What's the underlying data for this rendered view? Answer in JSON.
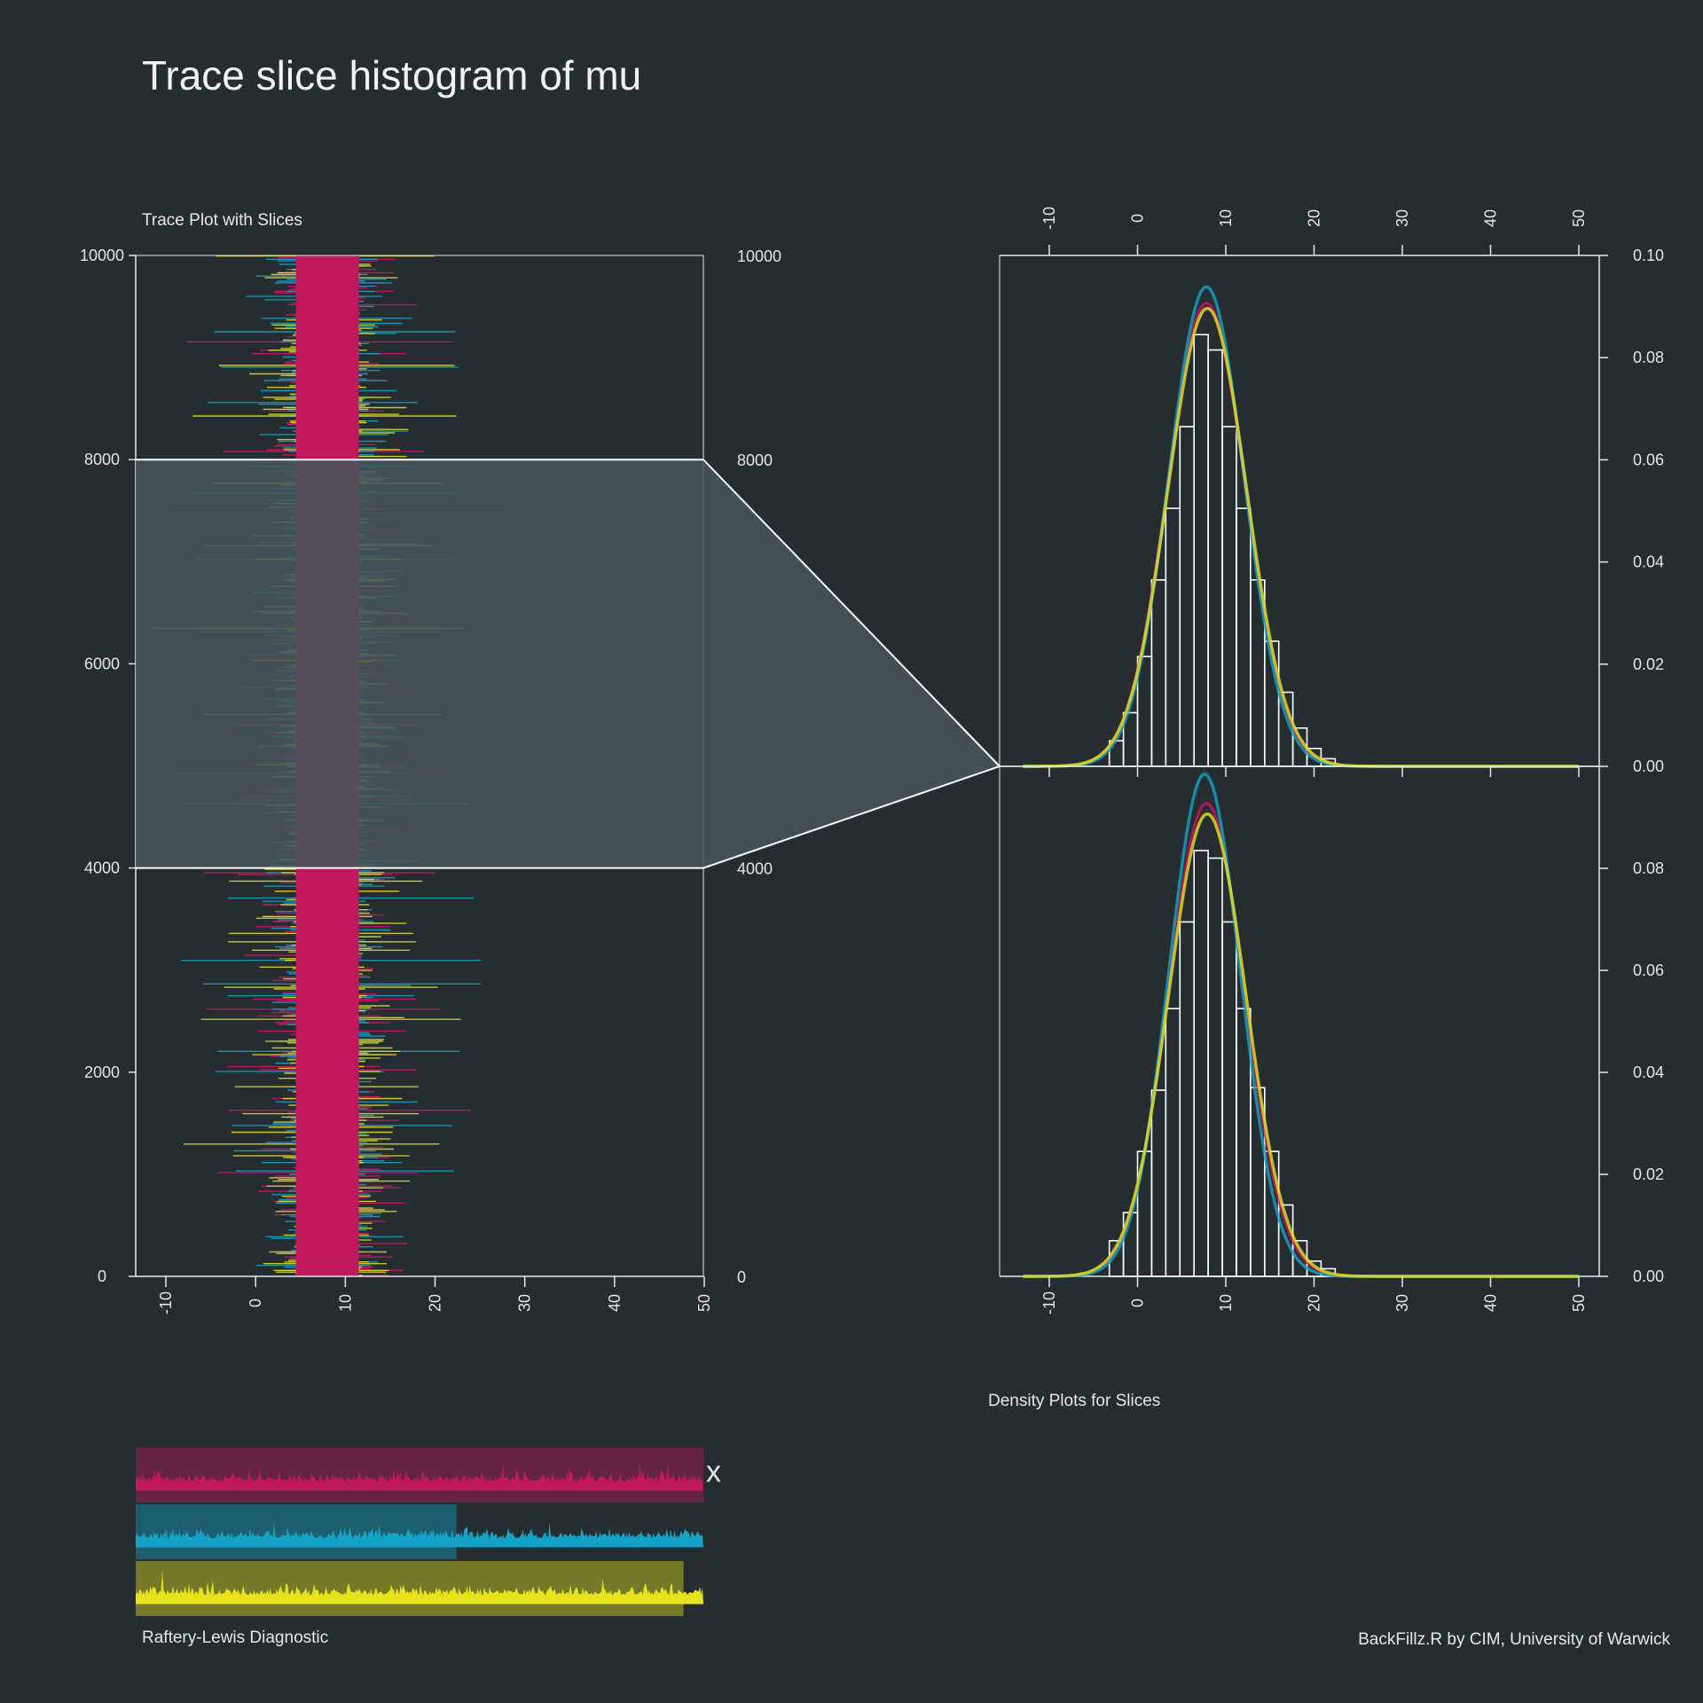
{
  "title": "Trace slice histogram of mu",
  "trace_title": "Trace Plot with Slices",
  "density_title": "Density Plots for Slices",
  "rl_title": "Raftery-Lewis Diagnostic",
  "credit": "BackFillz.R by CIM, University of Warwick",
  "rl_marker": "x",
  "colors": {
    "background": "#252d31",
    "chain1": "#c0185f",
    "chain2": "#14a3c7",
    "chain3": "#e6e31c",
    "slice_fill": "#44555a",
    "axis": "#e8e8e8"
  },
  "chart_data": [
    {
      "type": "line",
      "orientation": "horizontal trace",
      "title": "Trace Plot with Slices",
      "x_ticks": [
        "-10",
        "0",
        "10",
        "20",
        "30",
        "40",
        "50"
      ],
      "x_range": [
        -13,
        50
      ],
      "y_ticks": [
        "0",
        "2000",
        "4000",
        "6000",
        "8000",
        "10000"
      ],
      "y_right_ticks": [
        "0",
        "4000",
        "8000",
        "10000"
      ],
      "y_range": [
        0,
        10000
      ],
      "slice_boundaries": [
        4000,
        8000
      ],
      "highlighted_slice": [
        4000,
        8000
      ],
      "series": [
        {
          "color": "#c0185f",
          "center": 8,
          "sd": 5
        },
        {
          "color": "#14a3c7",
          "center": 8,
          "sd": 5
        },
        {
          "color": "#e6e31c",
          "center": 8,
          "sd": 5
        }
      ]
    },
    {
      "type": "bar",
      "subtype": "histogram with density",
      "slice": "upper",
      "x_ticks": [
        "-10",
        "0",
        "10",
        "20",
        "30",
        "40",
        "50"
      ],
      "x_range": [
        -13,
        50
      ],
      "y_ticks": [
        "0.00",
        "0.02",
        "0.04",
        "0.06",
        "0.08",
        "0.10"
      ],
      "y_range": [
        0,
        0.1
      ],
      "bin_width": 1.6,
      "bins": [
        {
          "x": -2.4,
          "y": 0.005
        },
        {
          "x": -0.8,
          "y": 0.0105
        },
        {
          "x": 0.8,
          "y": 0.0215
        },
        {
          "x": 2.4,
          "y": 0.0365
        },
        {
          "x": 4.0,
          "y": 0.0505
        },
        {
          "x": 5.6,
          "y": 0.0665
        },
        {
          "x": 7.2,
          "y": 0.0845
        },
        {
          "x": 8.8,
          "y": 0.0815
        },
        {
          "x": 10.4,
          "y": 0.0665
        },
        {
          "x": 12.0,
          "y": 0.0505
        },
        {
          "x": 13.6,
          "y": 0.0365
        },
        {
          "x": 15.2,
          "y": 0.0245
        },
        {
          "x": 16.8,
          "y": 0.0145
        },
        {
          "x": 18.4,
          "y": 0.0075
        },
        {
          "x": 20.0,
          "y": 0.0035
        },
        {
          "x": 21.6,
          "y": 0.0015
        }
      ],
      "density_series": [
        {
          "color": "#c0185f",
          "mean": 7.8,
          "sd": 4.4
        },
        {
          "color": "#14a3c7",
          "mean": 7.8,
          "sd": 4.25
        },
        {
          "color": "#e6e31c",
          "mean": 7.9,
          "sd": 4.45
        }
      ]
    },
    {
      "type": "bar",
      "subtype": "histogram with density",
      "slice": "lower",
      "x_ticks": [
        "-10",
        "0",
        "10",
        "20",
        "30",
        "40",
        "50"
      ],
      "x_range": [
        -13,
        50
      ],
      "y_ticks": [
        "0.00",
        "0.02",
        "0.04",
        "0.06",
        "0.08"
      ],
      "y_range": [
        0,
        0.1
      ],
      "bin_width": 1.6,
      "bins": [
        {
          "x": -2.4,
          "y": 0.007
        },
        {
          "x": -0.8,
          "y": 0.0125
        },
        {
          "x": 0.8,
          "y": 0.0245
        },
        {
          "x": 2.4,
          "y": 0.0365
        },
        {
          "x": 4.0,
          "y": 0.0525
        },
        {
          "x": 5.6,
          "y": 0.0695
        },
        {
          "x": 7.2,
          "y": 0.0835
        },
        {
          "x": 8.8,
          "y": 0.082
        },
        {
          "x": 10.4,
          "y": 0.0695
        },
        {
          "x": 12.0,
          "y": 0.0525
        },
        {
          "x": 13.6,
          "y": 0.037
        },
        {
          "x": 15.2,
          "y": 0.0245
        },
        {
          "x": 16.8,
          "y": 0.014
        },
        {
          "x": 18.4,
          "y": 0.007
        },
        {
          "x": 20.0,
          "y": 0.003
        },
        {
          "x": 21.6,
          "y": 0.0015
        }
      ],
      "density_series": [
        {
          "color": "#c0185f",
          "mean": 7.8,
          "sd": 4.3
        },
        {
          "color": "#14a3c7",
          "mean": 7.6,
          "sd": 4.05
        },
        {
          "color": "#e6e31c",
          "mean": 7.9,
          "sd": 4.4
        }
      ]
    },
    {
      "type": "bar",
      "subtype": "Raftery-Lewis diagnostic bars",
      "title": "Raftery-Lewis Diagnostic",
      "bars": [
        {
          "color": "#c0185f",
          "fraction": 1.0,
          "marker": "x"
        },
        {
          "color": "#14a3c7",
          "fraction": 0.565
        },
        {
          "color": "#e6e31c",
          "fraction": 0.965
        }
      ]
    }
  ]
}
